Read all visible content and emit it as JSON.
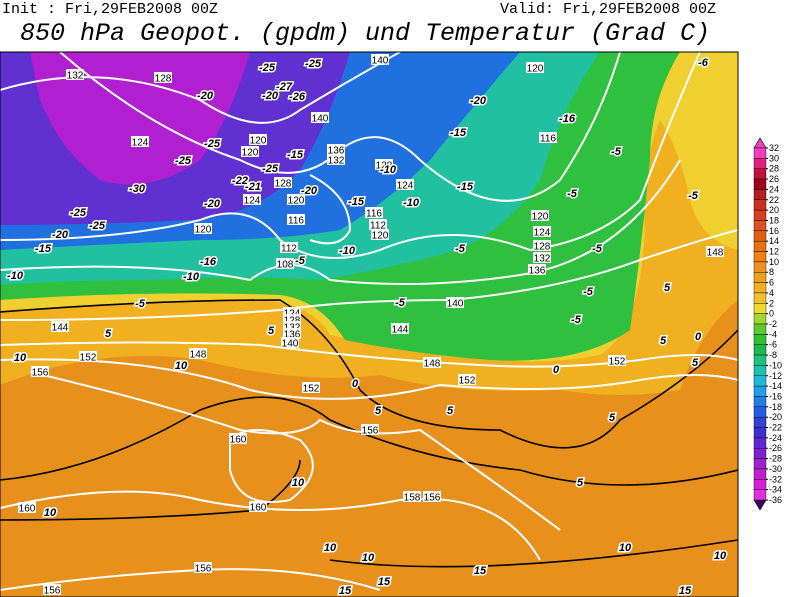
{
  "header": {
    "init": "Init : Fri,29FEB2008 00Z",
    "valid": "Valid: Fri,29FEB2008 00Z",
    "title": "850 hPa Geopot. (gpdm) und Temperatur (Grad C)"
  },
  "colorbar": {
    "levels": [
      32,
      30,
      28,
      26,
      24,
      22,
      20,
      18,
      16,
      14,
      12,
      10,
      8,
      6,
      4,
      2,
      0,
      -2,
      -4,
      -6,
      -8,
      -10,
      -12,
      -14,
      -16,
      -18,
      -20,
      -22,
      -24,
      -26,
      -28,
      -30,
      -32,
      -34,
      -36
    ],
    "colors": [
      "#f040c0",
      "#e02080",
      "#c01040",
      "#a00020",
      "#b02020",
      "#c83020",
      "#d84020",
      "#e05020",
      "#e06010",
      "#e87010",
      "#f08010",
      "#f09020",
      "#f0a020",
      "#f0b020",
      "#f0c030",
      "#f0d830",
      "#a0d830",
      "#60c830",
      "#30c030",
      "#20b850",
      "#20c080",
      "#20c0b0",
      "#20b8d8",
      "#20a0e8",
      "#2080e8",
      "#2060e0",
      "#3040d8",
      "#4030d0",
      "#6028d0",
      "#8020d0",
      "#a020d0",
      "#c020d0",
      "#d820d8",
      "#e030e0"
    ],
    "top_color": "#f040c0",
    "bottom_color": "#400060"
  },
  "geopotential_labels": [
    132,
    128,
    140,
    120,
    140,
    124,
    120,
    116,
    120,
    136,
    132,
    128,
    124,
    128,
    124,
    120,
    116,
    116,
    112,
    120,
    120,
    112,
    120,
    124,
    128,
    132,
    136,
    148,
    108,
    140,
    124,
    128,
    132,
    136,
    140,
    144,
    144,
    148,
    152,
    148,
    152,
    156,
    152,
    152,
    156,
    160,
    158,
    156,
    160,
    160,
    156,
    156
  ],
  "temperature_labels": [
    -25,
    -25,
    -27,
    -20,
    -26,
    -20,
    -20,
    -16,
    -15,
    -6,
    -25,
    -25,
    -15,
    -25,
    -5,
    -10,
    -30,
    -22,
    -21,
    -20,
    -15,
    -10,
    -15,
    -20,
    -5,
    -5,
    -25,
    -25,
    -20,
    -15,
    -10,
    -5,
    -5,
    -16,
    -10,
    -10,
    -5,
    -5,
    -5,
    -5,
    5,
    5,
    5,
    10,
    10,
    -5,
    0,
    5,
    0,
    0,
    5,
    5,
    5,
    5,
    10,
    10,
    5,
    10,
    10,
    10,
    15,
    15,
    15,
    10,
    15
  ]
}
